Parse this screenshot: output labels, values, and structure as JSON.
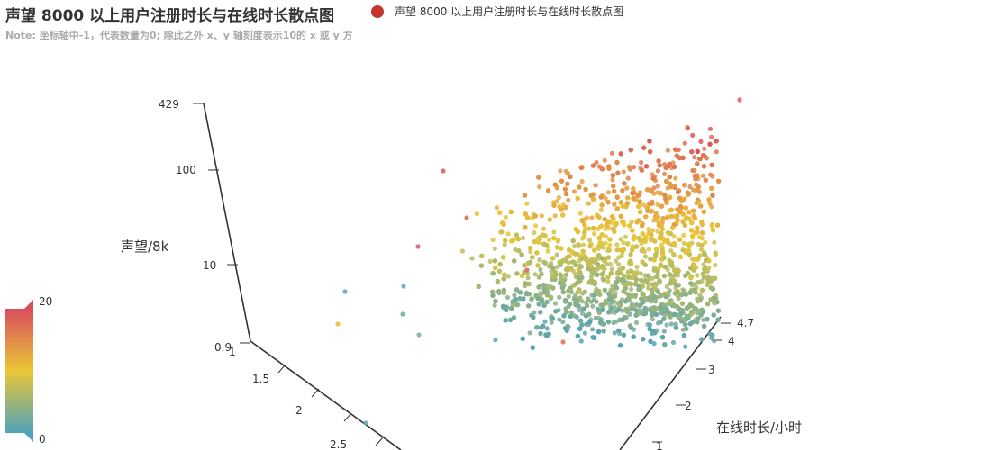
{
  "title": "声望 8000 以上用户注册时长与在线时长散点图",
  "subtitle": "Note: 坐标轴中-1，代表数量为0; 除此之外 x、y 轴刻度表示10的 x 或 y 方",
  "legend": {
    "series_name": "声望 8000 以上用户注册时长与在线时长散点图",
    "color": "#c23531"
  },
  "visual_map": {
    "max_label": "20",
    "min_label": "0",
    "colors": [
      "#d94e5d",
      "#eac736",
      "#50a3ba"
    ]
  },
  "chart_data": {
    "type": "scatter",
    "series": [
      {
        "name": "声望 8000 以上用户注册时长与在线时长散点图",
        "point_count_approx": 9000
      }
    ],
    "axes": {
      "z": {
        "label": "声望/8k",
        "scale": "log",
        "ticks": [
          "0.9",
          "10",
          "100",
          "429"
        ],
        "range": [
          0.9,
          429
        ]
      },
      "x": {
        "label": "",
        "ticks": [
          "1",
          "1.5",
          "2",
          "2.5"
        ]
      },
      "y": {
        "label": "在线时长/小时",
        "ticks": [
          "1",
          "2",
          "3",
          "4",
          "4.7"
        ],
        "range": [
          1,
          4.7
        ]
      }
    },
    "color_range": [
      0,
      20
    ]
  }
}
